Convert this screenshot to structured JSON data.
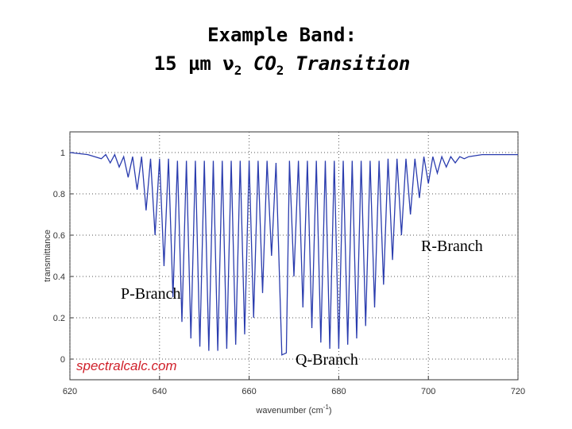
{
  "chart_data": {
    "type": "line",
    "title": "Example Band:",
    "subtitle_parts": [
      "15 µm ν",
      "2",
      " CO",
      "2",
      " Transition"
    ],
    "xlabel_parts": [
      "wavenumber (cm",
      "-1",
      ")"
    ],
    "ylabel": "transmittance",
    "annotations": [
      "R-Branch",
      "P-Branch",
      "Q-Branch"
    ],
    "watermark": "spectralcalc.com",
    "xlim": [
      620,
      720
    ],
    "xticks": [
      620,
      640,
      660,
      680,
      700,
      720
    ],
    "ylim": [
      -0.1,
      1.1
    ],
    "yticks": [
      0,
      0.2,
      0.4,
      0.6,
      0.8,
      1
    ],
    "grid": true,
    "series": [
      {
        "color": "#2a3cae",
        "x": [
          620,
          624,
          627,
          628,
          629,
          630,
          631,
          632,
          633,
          634,
          635,
          636,
          637,
          638,
          639,
          640,
          641,
          642,
          643,
          644,
          645,
          646,
          647,
          648,
          649,
          650,
          651,
          652,
          653,
          654,
          655,
          656,
          657,
          658,
          659,
          660,
          661,
          662,
          663,
          664,
          665,
          666,
          667.3,
          668.3,
          669,
          670,
          671,
          672,
          673,
          674,
          675,
          676,
          677,
          678,
          679,
          680,
          681,
          682,
          683,
          684,
          685,
          686,
          687,
          688,
          689,
          690,
          691,
          692,
          693,
          694,
          695,
          696,
          697,
          698,
          699,
          700,
          701,
          702,
          703,
          704,
          705,
          706,
          707,
          708,
          709,
          712,
          720
        ],
        "values": [
          1.0,
          0.99,
          0.97,
          0.99,
          0.95,
          0.99,
          0.93,
          0.98,
          0.88,
          0.98,
          0.82,
          0.98,
          0.72,
          0.97,
          0.6,
          0.97,
          0.45,
          0.97,
          0.3,
          0.96,
          0.18,
          0.96,
          0.1,
          0.96,
          0.06,
          0.96,
          0.04,
          0.96,
          0.04,
          0.96,
          0.05,
          0.96,
          0.07,
          0.96,
          0.12,
          0.96,
          0.2,
          0.96,
          0.32,
          0.96,
          0.5,
          0.95,
          0.02,
          0.03,
          0.96,
          0.4,
          0.96,
          0.25,
          0.96,
          0.15,
          0.96,
          0.08,
          0.96,
          0.05,
          0.96,
          0.05,
          0.96,
          0.07,
          0.96,
          0.1,
          0.96,
          0.16,
          0.96,
          0.25,
          0.96,
          0.36,
          0.97,
          0.48,
          0.97,
          0.6,
          0.97,
          0.7,
          0.97,
          0.78,
          0.98,
          0.85,
          0.98,
          0.9,
          0.98,
          0.93,
          0.98,
          0.95,
          0.98,
          0.97,
          0.98,
          0.99,
          0.99
        ]
      }
    ]
  }
}
